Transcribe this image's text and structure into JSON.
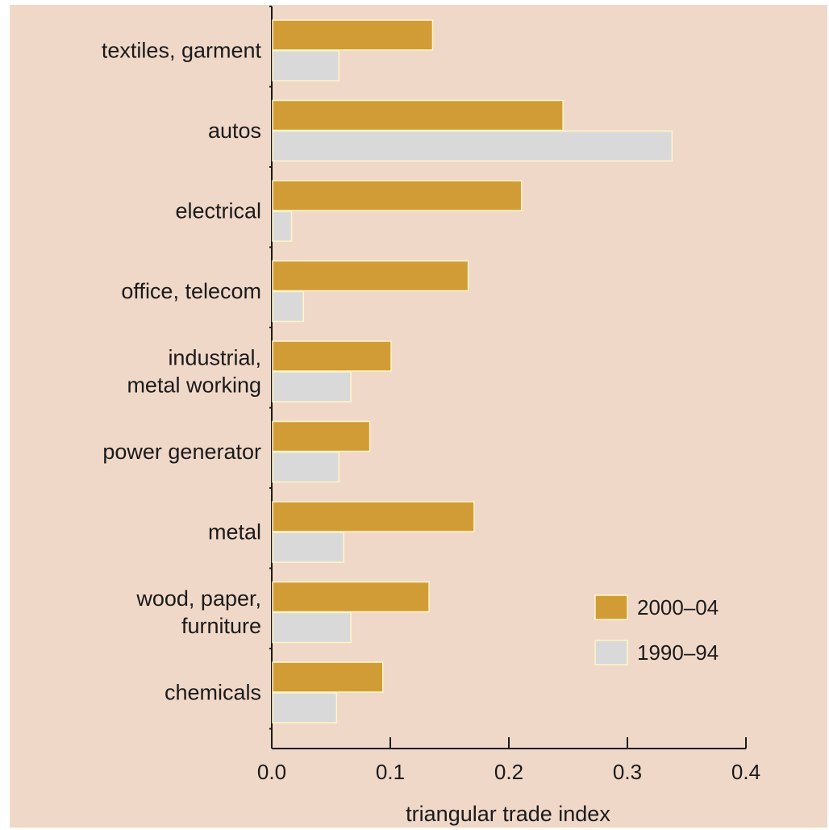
{
  "chart_data": {
    "type": "bar",
    "orientation": "horizontal",
    "categories": [
      [
        "textiles, garment"
      ],
      [
        "autos"
      ],
      [
        "electrical"
      ],
      [
        "office, telecom"
      ],
      [
        "industrial,",
        "metal working"
      ],
      [
        "power generator"
      ],
      [
        "metal"
      ],
      [
        "wood, paper,",
        "furniture"
      ],
      [
        "chemicals"
      ]
    ],
    "series": [
      {
        "name": "2000–04",
        "color": "#d19c36",
        "values": [
          0.135,
          0.245,
          0.21,
          0.165,
          0.1,
          0.082,
          0.17,
          0.132,
          0.093
        ]
      },
      {
        "name": "1990–94",
        "color": "#d9d9d9",
        "values": [
          0.056,
          0.337,
          0.016,
          0.026,
          0.066,
          0.056,
          0.06,
          0.066,
          0.054
        ]
      }
    ],
    "xlabel": "triangular trade index",
    "xlim": [
      0,
      0.4
    ],
    "xticks": [
      "0.0",
      "0.1",
      "0.2",
      "0.3",
      "0.4"
    ],
    "grid": false,
    "legend_position": "right"
  }
}
